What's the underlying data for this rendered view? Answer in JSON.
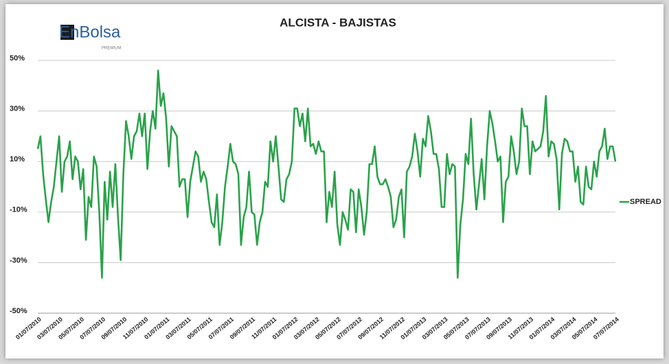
{
  "logo": {
    "text": "EnBolsa",
    "sub": "PREMIUM"
  },
  "chart_data": {
    "type": "line",
    "title": "ALCISTA - BAJISTAS",
    "categories": [
      "01/07/2010",
      null,
      null,
      null,
      null,
      null,
      null,
      null,
      "03/07/2010",
      null,
      null,
      null,
      null,
      null,
      null,
      null,
      "05/07/2010",
      null,
      null,
      null,
      null,
      null,
      null,
      null,
      "07/07/2010",
      null,
      null,
      null,
      null,
      null,
      null,
      null,
      "09/07/2010",
      null,
      null,
      null,
      null,
      null,
      null,
      null,
      "11/07/2010",
      null,
      null,
      null,
      null,
      null,
      null,
      null,
      "01/07/2011",
      null,
      null,
      null,
      null,
      null,
      null,
      null,
      "03/07/2011",
      null,
      null,
      null,
      null,
      null,
      null,
      null,
      "05/07/2011",
      null,
      null,
      null,
      null,
      null,
      null,
      null,
      "07/07/2011",
      null,
      null,
      null,
      null,
      null,
      null,
      null,
      "09/07/2011",
      null,
      null,
      null,
      null,
      null,
      null,
      null,
      "11/07/2011",
      null,
      null,
      null,
      null,
      null,
      null,
      null,
      "01/07/2012",
      null,
      null,
      null,
      null,
      null,
      null,
      null,
      "03/07/2012",
      null,
      null,
      null,
      null,
      null,
      null,
      null,
      "05/07/2012",
      null,
      null,
      null,
      null,
      null,
      null,
      null,
      "07/07/2012",
      null,
      null,
      null,
      null,
      null,
      null,
      null,
      "09/07/2012",
      null,
      null,
      null,
      null,
      null,
      null,
      null,
      "11/07/2012",
      null,
      null,
      null,
      null,
      null,
      null,
      null,
      "01/07/2013",
      null,
      null,
      null,
      null,
      null,
      null,
      null,
      "03/07/2013",
      null,
      null,
      null,
      null,
      null,
      null,
      null,
      "05/07/2013",
      null,
      null,
      null,
      null,
      null,
      null,
      null,
      "07/07/2013",
      null,
      null,
      null,
      null,
      null,
      null,
      null,
      "09/07/2013",
      null,
      null,
      null,
      null,
      null,
      null,
      null,
      "11/07/2013",
      null,
      null,
      null,
      null,
      null,
      null,
      null,
      "01/07/2014",
      null,
      null,
      null,
      null,
      null,
      null,
      null,
      "03/07/2014",
      null,
      null,
      null,
      null,
      null,
      null,
      null,
      "05/07/2014",
      null,
      null,
      null,
      null,
      null,
      null,
      null,
      "07/07/2014"
    ],
    "series": [
      {
        "name": "SPREAD",
        "color": "#2aa24a",
        "values": [
          15,
          20,
          5,
          -5,
          -14,
          -6,
          0,
          10,
          20,
          -2,
          10,
          12,
          18,
          3,
          12,
          10,
          -1,
          7,
          -21,
          -4,
          -8,
          12,
          8,
          -10,
          -36,
          2,
          -13,
          6,
          -8,
          9,
          -12,
          -29,
          5,
          26,
          20,
          11,
          20,
          22,
          29,
          20,
          29,
          7,
          22,
          30,
          23,
          46,
          32,
          37,
          27,
          8,
          24,
          22,
          20,
          0,
          3,
          3,
          -12,
          2,
          8,
          14,
          12,
          2,
          6,
          3,
          -6,
          -14,
          -16,
          -3,
          -23,
          -14,
          0,
          8,
          17,
          10,
          9,
          5,
          -23,
          -12,
          -8,
          6,
          -10,
          -11,
          -23,
          -14,
          -10,
          2,
          0,
          18,
          10,
          20,
          8,
          -5,
          -6,
          3,
          5,
          10,
          31,
          31,
          24,
          29,
          18,
          31,
          16,
          17,
          13,
          18,
          14,
          14,
          -14,
          -2,
          -8,
          6,
          -15,
          -23,
          -10,
          -13,
          -17,
          -1,
          -2,
          -18,
          -1,
          -8,
          -19,
          -10,
          9,
          9,
          16,
          4,
          1,
          1,
          3,
          0,
          -4,
          -16,
          -13,
          -4,
          -1,
          -20,
          6,
          8,
          12,
          21,
          14,
          4,
          19,
          16,
          28,
          22,
          13,
          13,
          7,
          -8,
          -8,
          13,
          5,
          9,
          8,
          -36,
          -15,
          -5,
          13,
          9,
          27,
          5,
          -9,
          1,
          11,
          -5,
          16,
          30,
          25,
          18,
          10,
          12,
          -14,
          2,
          4,
          20,
          14,
          5,
          10,
          31,
          24,
          24,
          5,
          18,
          14,
          15,
          16,
          22,
          36,
          12,
          18,
          17,
          11,
          -9,
          13,
          19,
          18,
          14,
          14,
          2,
          8,
          -6,
          -7,
          8,
          0,
          -1,
          10,
          4,
          14,
          16,
          23,
          11,
          16,
          16,
          10
        ]
      }
    ],
    "ylim": [
      -50,
      50
    ],
    "yticks": [
      {
        "value": -50,
        "label": "-50%"
      },
      {
        "value": -30,
        "label": "-30%"
      },
      {
        "value": -10,
        "label": "-10%"
      },
      {
        "value": 10,
        "label": "10%"
      },
      {
        "value": 30,
        "label": "30%"
      },
      {
        "value": 50,
        "label": "50%"
      }
    ],
    "grid": true,
    "legend": "right"
  }
}
